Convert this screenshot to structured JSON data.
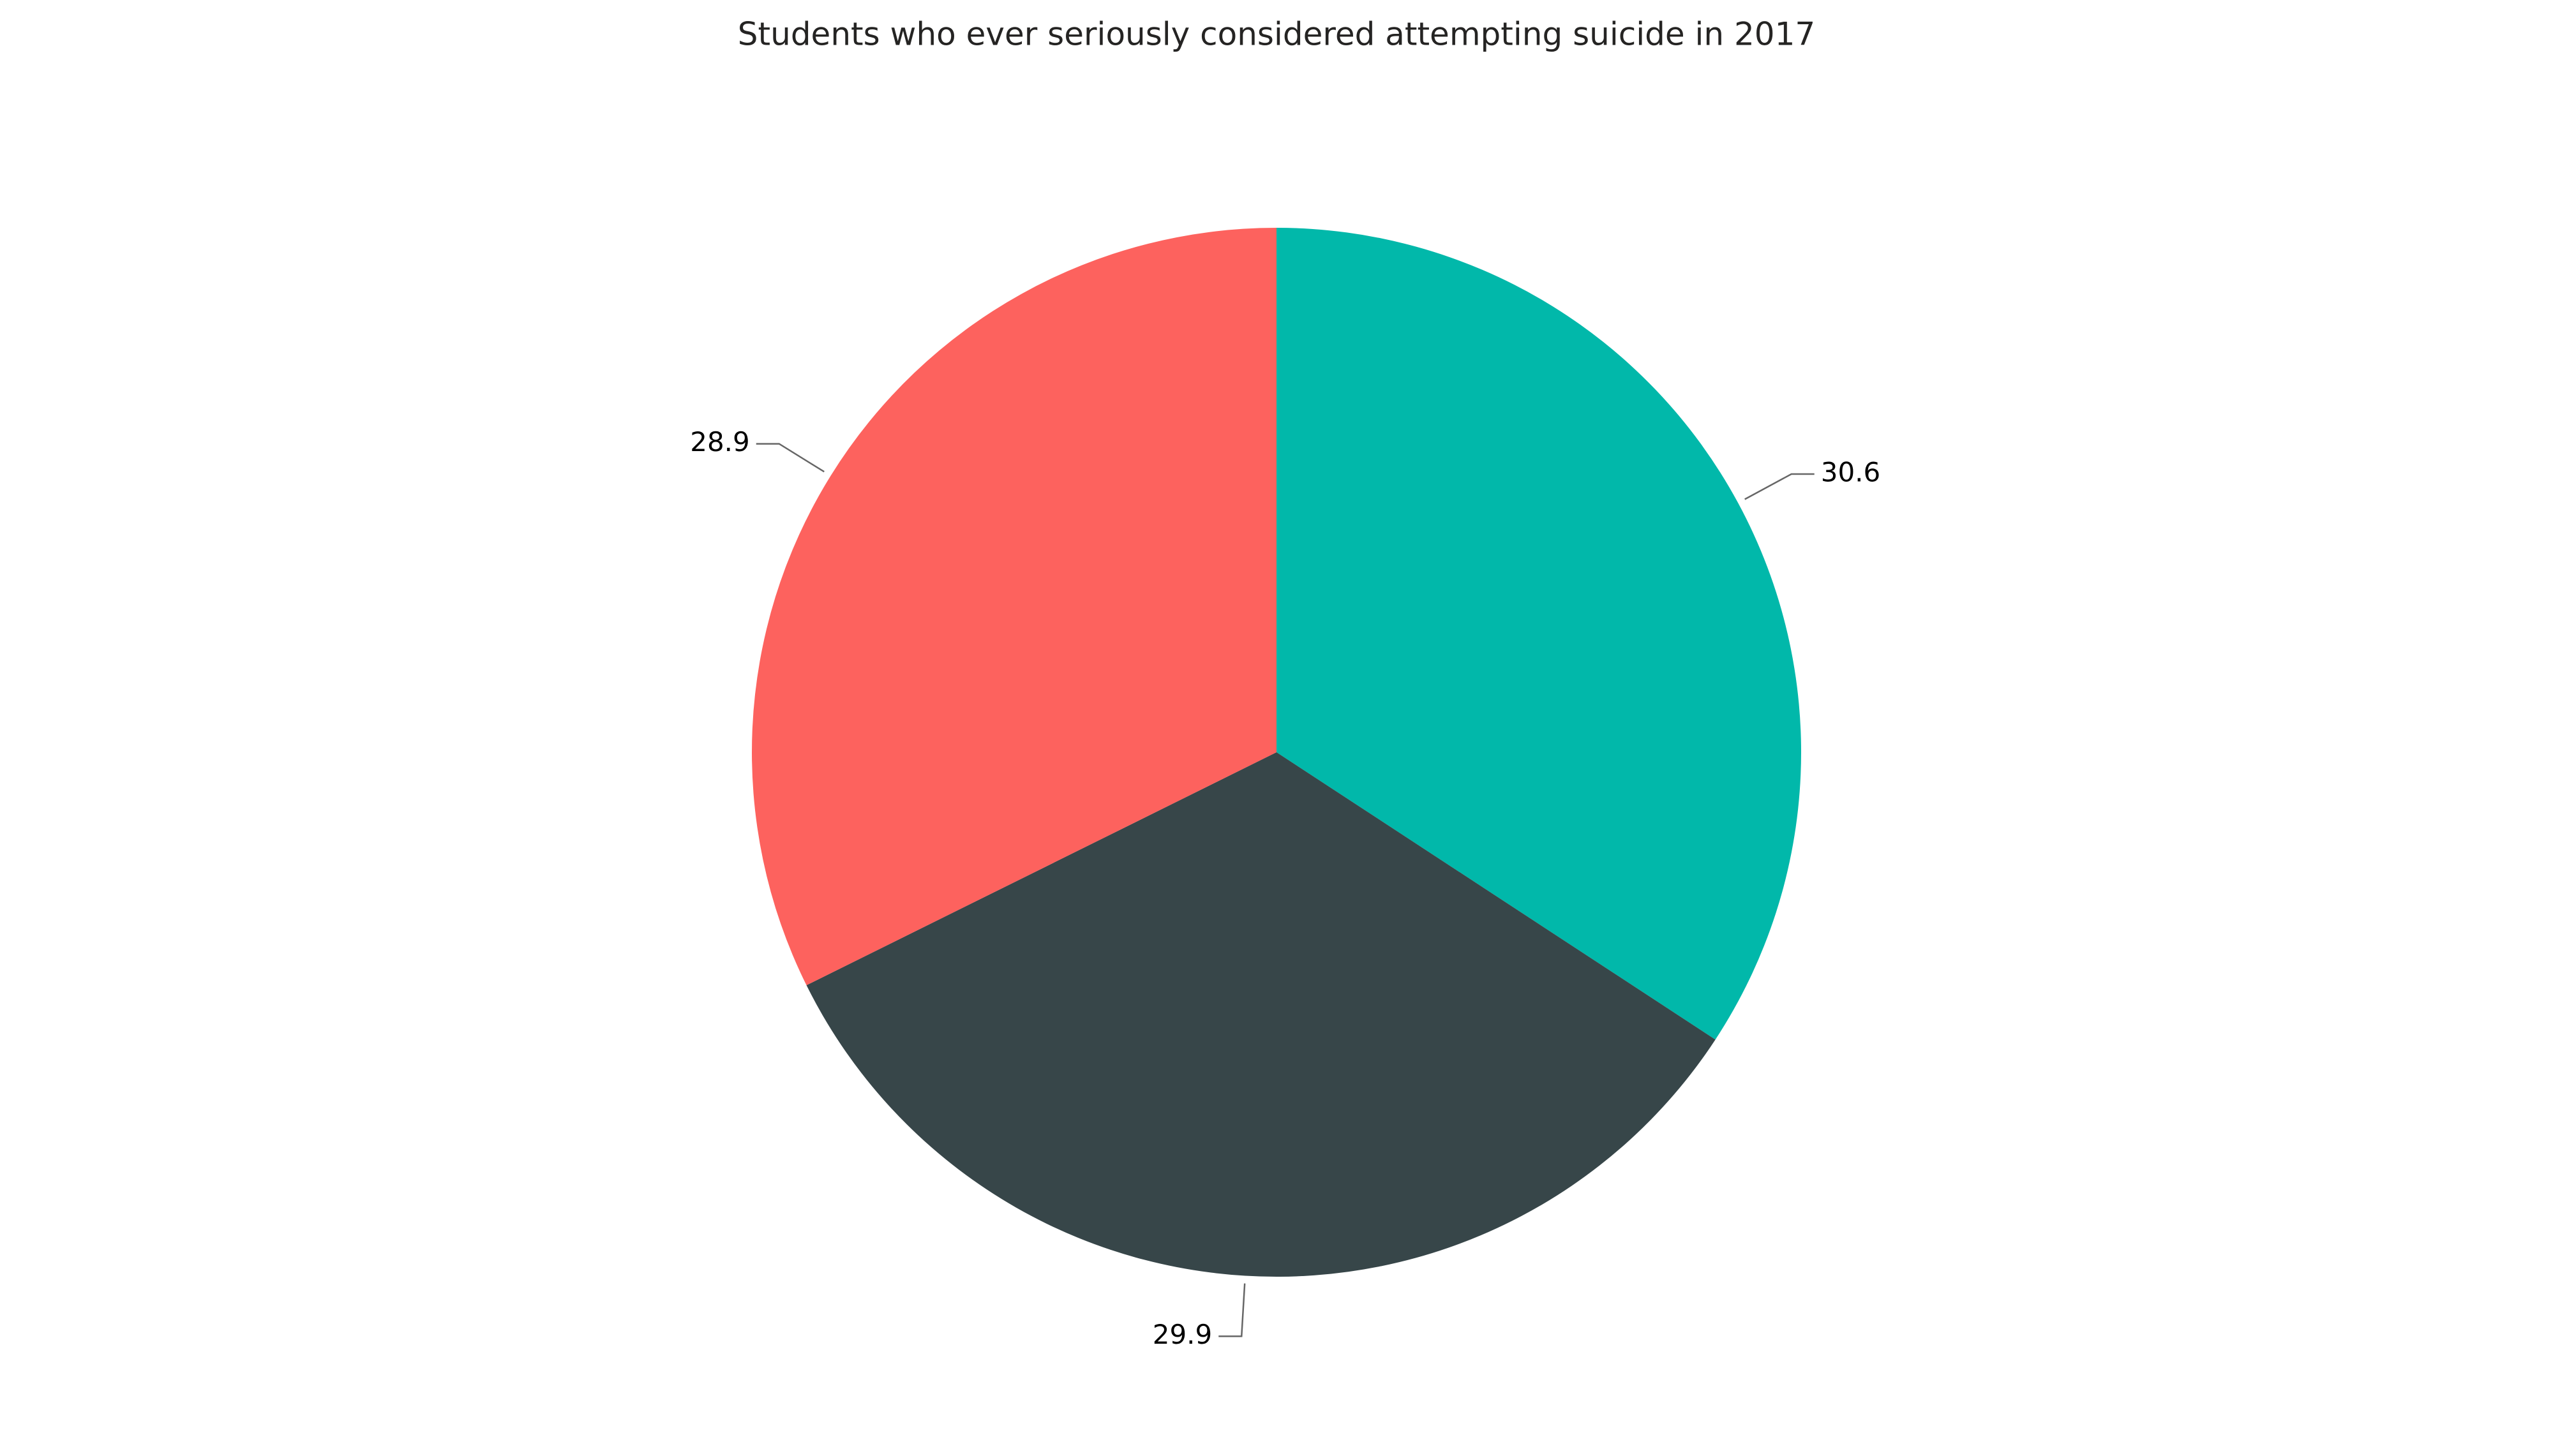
{
  "chart_data": {
    "type": "pie",
    "title": "Students who ever seriously considered attempting suicide in 2017",
    "values": [
      30.6,
      29.9,
      28.9
    ],
    "colors": [
      "#01b8aa",
      "#374649",
      "#fd625e"
    ]
  }
}
